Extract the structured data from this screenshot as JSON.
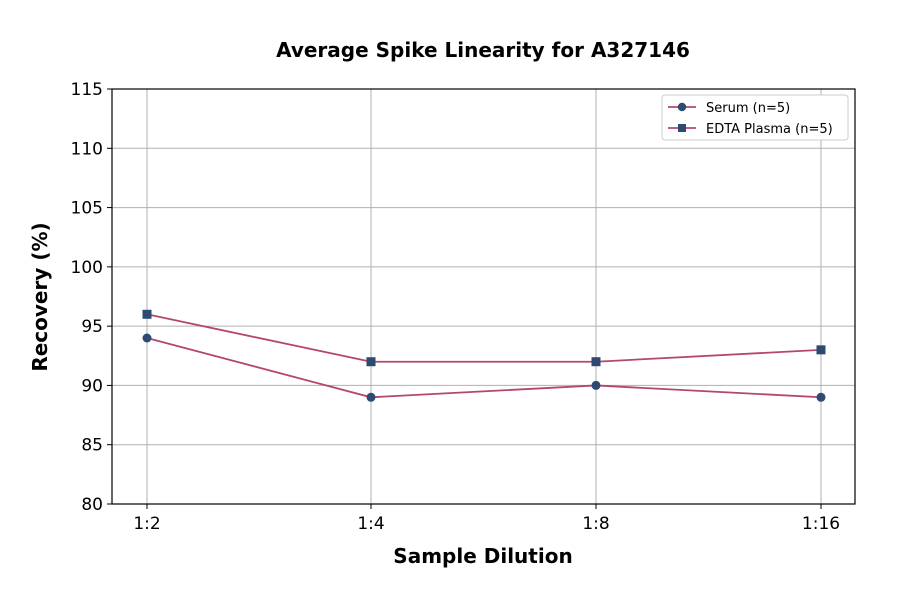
{
  "chart_data": {
    "type": "line",
    "title": "Average Spike Linearity for A327146",
    "xlabel": "Sample Dilution",
    "ylabel": "Recovery (%)",
    "categories": [
      "1:2",
      "1:4",
      "1:8",
      "1:16"
    ],
    "ylim": [
      80,
      115
    ],
    "yticks": [
      80,
      85,
      90,
      95,
      100,
      105,
      110,
      115
    ],
    "grid": true,
    "legend_position": "top-right",
    "series": [
      {
        "name": "Serum (n=5)",
        "values": [
          94,
          89,
          90,
          89
        ],
        "marker": "circle"
      },
      {
        "name": "EDTA Plasma (n=5)",
        "values": [
          96,
          92,
          92,
          93
        ],
        "marker": "square"
      }
    ],
    "colors": {
      "line": "#b5476e",
      "marker": "#2e4a70",
      "grid": "#b0b0b0"
    }
  }
}
